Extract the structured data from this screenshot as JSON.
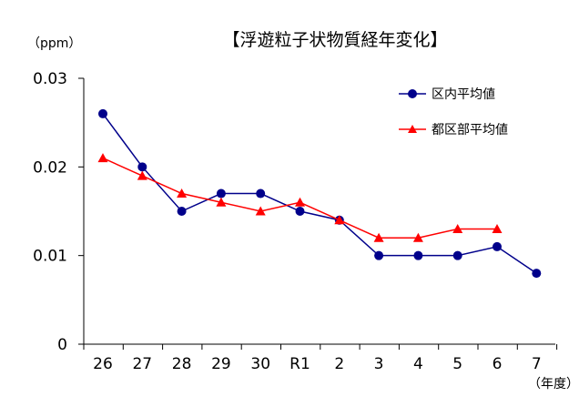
{
  "chart_data": {
    "type": "line",
    "title": "【浮遊粒子状物質経年変化】",
    "ylabel": "（ppm）",
    "xlabel": "（年度）",
    "categories": [
      "26",
      "27",
      "28",
      "29",
      "30",
      "R1",
      "2",
      "3",
      "4",
      "5",
      "6",
      "7"
    ],
    "ylim": [
      0,
      0.03
    ],
    "yticks": [
      "0",
      "0.01",
      "0.02",
      "0.03"
    ],
    "grid": false,
    "legend_position": "top-right",
    "series": [
      {
        "name": "区内平均値",
        "color": "#00008B",
        "marker": "circle",
        "values": [
          0.026,
          0.02,
          0.015,
          0.017,
          0.017,
          0.015,
          0.014,
          0.01,
          0.01,
          0.01,
          0.011,
          0.008
        ]
      },
      {
        "name": "都区部平均値",
        "color": "#FF0000",
        "marker": "triangle",
        "values": [
          0.021,
          0.019,
          0.017,
          0.016,
          0.015,
          0.016,
          0.014,
          0.012,
          0.012,
          0.013,
          0.013,
          null
        ]
      }
    ]
  }
}
